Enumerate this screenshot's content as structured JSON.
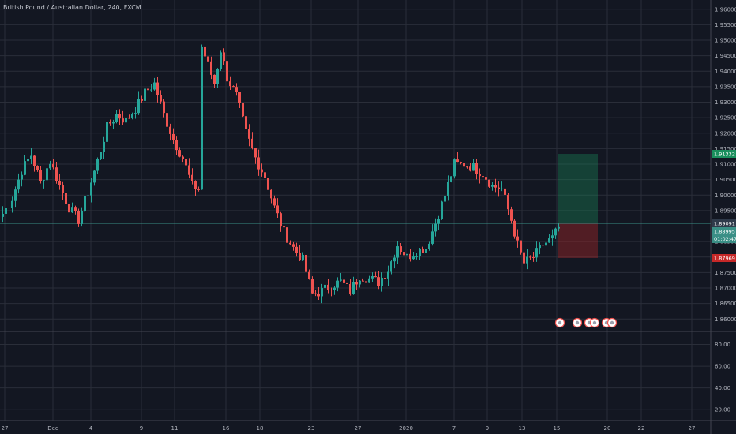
{
  "header": {
    "title": "British Pound / Australian Dollar, 240, FXCM"
  },
  "theme": {
    "background": "#131722",
    "grid": "#2a2e39",
    "up": "#26a69a",
    "down": "#ef5350",
    "axis_text": "#b2b5be",
    "current_line": "#3a8f86",
    "target_color": "#1a8f5d",
    "stop_color": "#c62828"
  },
  "chart_data": {
    "type": "candlestick",
    "title": "British Pound / Australian Dollar, 240, FXCM",
    "y_ticks": [
      "1.96000",
      "1.95500",
      "1.95000",
      "1.94500",
      "1.94000",
      "1.93500",
      "1.93000",
      "1.92500",
      "1.92000",
      "1.91500",
      "1.91000",
      "1.90500",
      "1.90000",
      "1.89500",
      "1.89000",
      "1.88500",
      "1.88000",
      "1.87500",
      "1.87000",
      "1.86500",
      "1.86000"
    ],
    "ylim": [
      1.856,
      1.963
    ],
    "x_ticks": [
      "27",
      "Dec",
      "4",
      "9",
      "11",
      "16",
      "18",
      "23",
      "27",
      "2020",
      "7",
      "9",
      "13",
      "15",
      "20",
      "22",
      "27"
    ],
    "price_labels": {
      "target": "1.91332",
      "entry": "1.89091",
      "current": "1.88995",
      "countdown": "01:02:47",
      "stop": "1.87969"
    },
    "position": {
      "entry": 1.89091,
      "target": 1.91332,
      "stop": 1.87969
    },
    "indicator": {
      "ticks": [
        "80.00",
        "60.00",
        "40.00",
        "20.00"
      ],
      "ylim": [
        10,
        92
      ]
    },
    "anchors": [
      [
        0,
        1.894
      ],
      [
        3,
        1.899
      ],
      [
        6,
        1.908
      ],
      [
        9,
        1.913
      ],
      [
        12,
        1.904
      ],
      [
        15,
        1.911
      ],
      [
        18,
        1.903
      ],
      [
        21,
        1.896
      ],
      [
        24,
        1.892
      ],
      [
        27,
        1.901
      ],
      [
        30,
        1.911
      ],
      [
        33,
        1.922
      ],
      [
        36,
        1.926
      ],
      [
        39,
        1.924
      ],
      [
        42,
        1.928
      ],
      [
        45,
        1.933
      ],
      [
        48,
        1.936
      ],
      [
        51,
        1.926
      ],
      [
        54,
        1.918
      ],
      [
        57,
        1.912
      ],
      [
        60,
        1.903
      ],
      [
        62,
        1.902
      ],
      [
        63,
        1.948
      ],
      [
        65,
        1.942
      ],
      [
        67,
        1.936
      ],
      [
        69,
        1.947
      ],
      [
        71,
        1.938
      ],
      [
        74,
        1.932
      ],
      [
        77,
        1.92
      ],
      [
        80,
        1.912
      ],
      [
        83,
        1.906
      ],
      [
        86,
        1.896
      ],
      [
        89,
        1.888
      ],
      [
        92,
        1.883
      ],
      [
        95,
        1.879
      ],
      [
        98,
        1.868
      ],
      [
        101,
        1.869
      ],
      [
        104,
        1.871
      ],
      [
        107,
        1.872
      ],
      [
        110,
        1.869
      ],
      [
        113,
        1.874
      ],
      [
        116,
        1.873
      ],
      [
        119,
        1.872
      ],
      [
        122,
        1.876
      ],
      [
        125,
        1.884
      ],
      [
        128,
        1.88
      ],
      [
        131,
        1.882
      ],
      [
        134,
        1.883
      ],
      [
        137,
        1.891
      ],
      [
        140,
        1.9
      ],
      [
        143,
        1.91
      ],
      [
        146,
        1.91
      ],
      [
        149,
        1.909
      ],
      [
        152,
        1.907
      ],
      [
        155,
        1.903
      ],
      [
        158,
        1.902
      ],
      [
        161,
        1.892
      ],
      [
        163,
        1.884
      ],
      [
        165,
        1.878
      ],
      [
        168,
        1.88
      ],
      [
        171,
        1.884
      ],
      [
        174,
        1.886
      ],
      [
        176,
        1.8895
      ]
    ]
  }
}
